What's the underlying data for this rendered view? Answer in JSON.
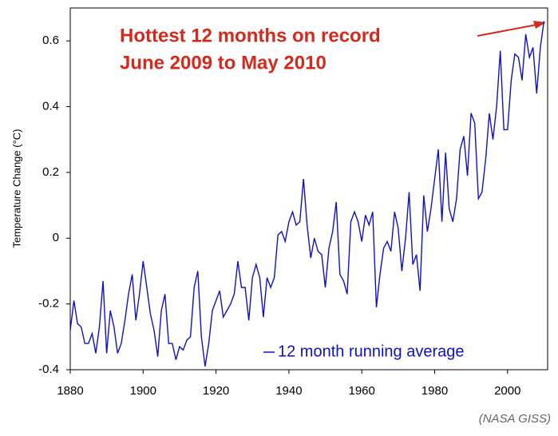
{
  "chart_data": {
    "type": "line",
    "annotation": [
      "Hottest 12 months on record",
      "June 2009 to May 2010"
    ],
    "ylabel": "Temperature Change (°C)",
    "source": "(NASA GISS)",
    "xlim": [
      1880,
      2011
    ],
    "xticks": [
      1880,
      1900,
      1920,
      1940,
      1960,
      1980,
      2000
    ],
    "ylim": [
      -0.4,
      0.7
    ],
    "yticks": [
      -0.4,
      -0.2,
      0,
      0.2,
      0.4,
      0.6
    ],
    "legend": "bottom-right",
    "x": [
      1880,
      1881,
      1882,
      1883,
      1884,
      1885,
      1886,
      1887,
      1888,
      1889,
      1890,
      1891,
      1892,
      1893,
      1894,
      1895,
      1896,
      1897,
      1898,
      1899,
      1900,
      1901,
      1902,
      1903,
      1904,
      1905,
      1906,
      1907,
      1908,
      1909,
      1910,
      1911,
      1912,
      1913,
      1914,
      1915,
      1916,
      1917,
      1918,
      1919,
      1920,
      1921,
      1922,
      1923,
      1924,
      1925,
      1926,
      1927,
      1928,
      1929,
      1930,
      1931,
      1932,
      1933,
      1934,
      1935,
      1936,
      1937,
      1938,
      1939,
      1940,
      1941,
      1942,
      1943,
      1944,
      1945,
      1946,
      1947,
      1948,
      1949,
      1950,
      1951,
      1952,
      1953,
      1954,
      1955,
      1956,
      1957,
      1958,
      1959,
      1960,
      1961,
      1962,
      1963,
      1964,
      1965,
      1966,
      1967,
      1968,
      1969,
      1970,
      1971,
      1972,
      1973,
      1974,
      1975,
      1976,
      1977,
      1978,
      1979,
      1980,
      1981,
      1982,
      1983,
      1984,
      1985,
      1986,
      1987,
      1988,
      1989,
      1990,
      1991,
      1992,
      1993,
      1994,
      1995,
      1996,
      1997,
      1998,
      1999,
      2000,
      2001,
      2002,
      2003,
      2004,
      2005,
      2006,
      2007,
      2008,
      2009,
      2010
    ],
    "series": [
      {
        "name": "12 month running average",
        "color": "#1010c8",
        "values": [
          -0.28,
          -0.19,
          -0.26,
          -0.27,
          -0.32,
          -0.32,
          -0.29,
          -0.35,
          -0.27,
          -0.13,
          -0.35,
          -0.22,
          -0.27,
          -0.35,
          -0.32,
          -0.25,
          -0.17,
          -0.11,
          -0.25,
          -0.17,
          -0.07,
          -0.15,
          -0.23,
          -0.28,
          -0.36,
          -0.22,
          -0.17,
          -0.32,
          -0.32,
          -0.37,
          -0.33,
          -0.34,
          -0.31,
          -0.3,
          -0.15,
          -0.1,
          -0.3,
          -0.39,
          -0.32,
          -0.22,
          -0.19,
          -0.16,
          -0.24,
          -0.22,
          -0.2,
          -0.17,
          -0.07,
          -0.15,
          -0.15,
          -0.25,
          -0.12,
          -0.08,
          -0.12,
          -0.24,
          -0.12,
          -0.15,
          -0.12,
          0.01,
          0.02,
          -0.01,
          0.05,
          0.08,
          0.04,
          0.05,
          0.18,
          0.04,
          -0.06,
          0.0,
          -0.04,
          -0.05,
          -0.15,
          -0.03,
          0.02,
          0.11,
          -0.11,
          -0.13,
          -0.17,
          0.05,
          0.08,
          0.05,
          -0.01,
          0.07,
          0.04,
          0.08,
          -0.21,
          -0.11,
          -0.03,
          -0.01,
          -0.04,
          0.08,
          0.03,
          -0.1,
          0.0,
          0.14,
          -0.08,
          -0.05,
          -0.16,
          0.13,
          0.02,
          0.09,
          0.18,
          0.27,
          0.05,
          0.26,
          0.09,
          0.05,
          0.12,
          0.27,
          0.31,
          0.19,
          0.38,
          0.35,
          0.12,
          0.14,
          0.24,
          0.38,
          0.3,
          0.4,
          0.57,
          0.33,
          0.33,
          0.48,
          0.56,
          0.55,
          0.48,
          0.62,
          0.55,
          0.58,
          0.44,
          0.58,
          0.66
        ]
      }
    ]
  }
}
